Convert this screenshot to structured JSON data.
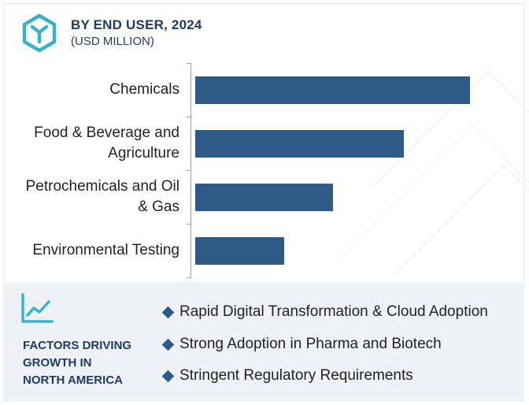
{
  "header": {
    "title": "BY END USER, 2024",
    "subtitle": "(USD MILLION)",
    "logo_icon": "y-hexagon-logo-icon"
  },
  "chart_data": {
    "type": "bar",
    "orientation": "horizontal",
    "title": "BY END USER, 2024",
    "subtitle": "(USD MILLION)",
    "categories": [
      "Chemicals",
      "Food & Beverage and Agriculture",
      "Petrochemicals and Oil & Gas",
      "Environmental Testing"
    ],
    "category_lines": [
      [
        "Chemicals"
      ],
      [
        "Food & Beverage and",
        "Agriculture"
      ],
      [
        "Petrochemicals and Oil",
        "& Gas"
      ],
      [
        "Environmental Testing"
      ]
    ],
    "values": [
      100,
      76,
      50,
      32.5
    ],
    "value_scale": "relative (no numeric axis shown)",
    "xlim": [
      0,
      100
    ],
    "grid": false,
    "legend": "none",
    "bar_color": "#2e5a87"
  },
  "factors": {
    "icon": "trend-line-chart-icon",
    "heading_lines": [
      "FACTORS DRIVING",
      "GROWTH IN",
      "NORTH AMERICA"
    ],
    "items": [
      "Rapid Digital Transformation & Cloud Adoption",
      "Strong Adoption in Pharma and Biotech",
      "Stringent Regulatory Requirements"
    ],
    "bullet_icon": "diamond-bullet-icon"
  },
  "colors": {
    "accent": "#2e5a87",
    "heading": "#1e3a5f",
    "logo": "#3bb2c8",
    "footer_bg": "#eef1f6"
  }
}
